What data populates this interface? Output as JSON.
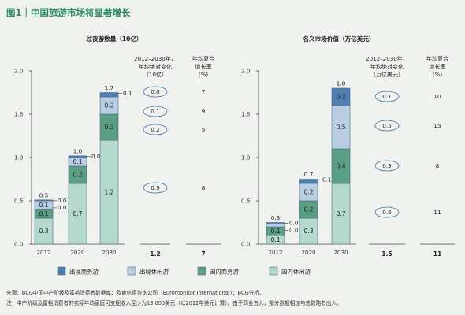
{
  "figure_title": "图1｜中国旅游市场将显著增长",
  "colors": {
    "outbound_business": "#4e7fb0",
    "outbound_leisure": "#b9cee3",
    "domestic_business": "#5a9e84",
    "domestic_leisure": "#b5d8cc",
    "title_green": "#2c8a64",
    "oval_stroke": "#3f6fa6"
  },
  "legend": [
    "出境商务游",
    "出境休闲游",
    "国内商务游",
    "国内休闲游"
  ],
  "source_line": "来源：BCG中国中产阶级及富裕消费者数据库；欧睿信息咨询公司（Euromonitor International）；BCG分析。",
  "note_line": "注：中产阶级及富裕消费者的实际年均家庭可支配收入至少为13,000美元（以2012年美元计算）。由于四舍五入，部分数据相加与总数略有出入。",
  "chart_data": [
    {
      "type": "bar",
      "stacked": true,
      "title": "过夜游数量（10亿）",
      "categories": [
        "2012",
        "2020",
        "2030"
      ],
      "ylim": [
        0,
        2.0
      ],
      "yticks": [
        "0.0",
        "0.5",
        "1.0",
        "1.5",
        "2.0"
      ],
      "series": [
        {
          "name": "国内休闲游",
          "values": [
            0.3,
            0.7,
            1.2
          ],
          "labels": [
            "0.3",
            "0.7",
            "1.2"
          ]
        },
        {
          "name": "国内商务游",
          "values": [
            0.1,
            0.2,
            0.3
          ],
          "labels": [
            "0.1",
            "0.2",
            "0.3"
          ]
        },
        {
          "name": "出境休闲游",
          "values": [
            0.1,
            0.1,
            0.2
          ],
          "labels": [
            "0.1",
            "0.1",
            "0.2"
          ]
        },
        {
          "name": "出境商务游",
          "values": [
            0.01,
            0.02,
            0.05
          ],
          "labels": [
            "",
            "",
            ""
          ]
        }
      ],
      "side_labels": {
        "2012": [
          "0.0",
          "0.0"
        ],
        "2020": [
          "0.0"
        ],
        "2030": [
          "0.1"
        ]
      },
      "totals": [
        "0.5",
        "1.0",
        "1.7"
      ],
      "abs_change_header": [
        "2012–2030年，",
        "年均绝对变化",
        "（10亿）"
      ],
      "cagr_header": [
        "年均复合",
        "增长率",
        "(%)"
      ],
      "abs_change": [
        "0.0",
        "0.1",
        "0.2",
        "0.9"
      ],
      "cagr": [
        "7",
        "9",
        "5",
        "8"
      ],
      "abs_change_total": "1.2",
      "cagr_total": "7"
    },
    {
      "type": "bar",
      "stacked": true,
      "title": "名义市场价值（万亿美元）",
      "categories": [
        "2012",
        "2020",
        "2030"
      ],
      "ylim": [
        0,
        2.0
      ],
      "yticks": [
        "0.0",
        "0.5",
        "1.0",
        "1.5",
        "2.0"
      ],
      "series": [
        {
          "name": "国内休闲游",
          "values": [
            0.1,
            0.3,
            0.7
          ],
          "labels": [
            "0.1",
            "0.3",
            "0.7"
          ]
        },
        {
          "name": "国内商务游",
          "values": [
            0.1,
            0.2,
            0.4
          ],
          "labels": [
            "0.1",
            "0.2",
            "0.4"
          ]
        },
        {
          "name": "出境休闲游",
          "values": [
            0.03,
            0.2,
            0.5
          ],
          "labels": [
            "",
            "0.2",
            "0.5"
          ]
        },
        {
          "name": "出境商务游",
          "values": [
            0.02,
            0.05,
            0.2
          ],
          "labels": [
            "",
            "",
            "0.2"
          ]
        }
      ],
      "side_labels": {
        "2012": [
          "0.0",
          "0.0"
        ],
        "2020": [
          "0.1"
        ],
        "2030": []
      },
      "totals": [
        "0.3",
        "0.7",
        "1.8"
      ],
      "abs_change_header": [
        "2012–2030年，",
        "年均绝对变化",
        "（万亿美元）"
      ],
      "cagr_header": [
        "年均复合",
        "增长率",
        "(%)"
      ],
      "abs_change": [
        "0.1",
        "0.5",
        "0.3",
        "0.6"
      ],
      "cagr": [
        "10",
        "15",
        "8",
        "11"
      ],
      "abs_change_total": "1.5",
      "cagr_total": "11"
    }
  ]
}
